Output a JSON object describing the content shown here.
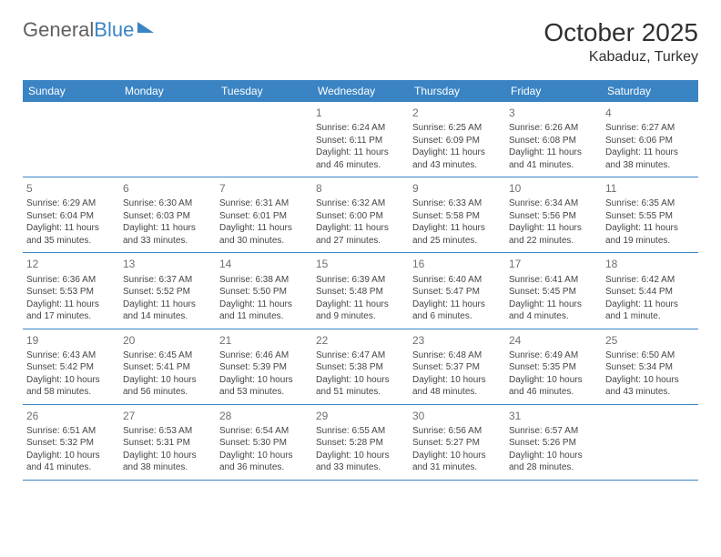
{
  "logo": {
    "text1": "General",
    "text2": "Blue"
  },
  "header": {
    "month": "October 2025",
    "location": "Kabaduz, Turkey"
  },
  "colors": {
    "header_bg": "#3a84c4",
    "header_text": "#ffffff",
    "border": "#3a84c4",
    "body_text": "#454545",
    "daynum": "#707070",
    "logo_gray": "#606060",
    "logo_blue": "#3a84c4"
  },
  "dow": [
    "Sunday",
    "Monday",
    "Tuesday",
    "Wednesday",
    "Thursday",
    "Friday",
    "Saturday"
  ],
  "weeks": [
    [
      {
        "n": "",
        "sr": "",
        "ss": "",
        "dl": ""
      },
      {
        "n": "",
        "sr": "",
        "ss": "",
        "dl": ""
      },
      {
        "n": "",
        "sr": "",
        "ss": "",
        "dl": ""
      },
      {
        "n": "1",
        "sr": "Sunrise: 6:24 AM",
        "ss": "Sunset: 6:11 PM",
        "dl": "Daylight: 11 hours and 46 minutes."
      },
      {
        "n": "2",
        "sr": "Sunrise: 6:25 AM",
        "ss": "Sunset: 6:09 PM",
        "dl": "Daylight: 11 hours and 43 minutes."
      },
      {
        "n": "3",
        "sr": "Sunrise: 6:26 AM",
        "ss": "Sunset: 6:08 PM",
        "dl": "Daylight: 11 hours and 41 minutes."
      },
      {
        "n": "4",
        "sr": "Sunrise: 6:27 AM",
        "ss": "Sunset: 6:06 PM",
        "dl": "Daylight: 11 hours and 38 minutes."
      }
    ],
    [
      {
        "n": "5",
        "sr": "Sunrise: 6:29 AM",
        "ss": "Sunset: 6:04 PM",
        "dl": "Daylight: 11 hours and 35 minutes."
      },
      {
        "n": "6",
        "sr": "Sunrise: 6:30 AM",
        "ss": "Sunset: 6:03 PM",
        "dl": "Daylight: 11 hours and 33 minutes."
      },
      {
        "n": "7",
        "sr": "Sunrise: 6:31 AM",
        "ss": "Sunset: 6:01 PM",
        "dl": "Daylight: 11 hours and 30 minutes."
      },
      {
        "n": "8",
        "sr": "Sunrise: 6:32 AM",
        "ss": "Sunset: 6:00 PM",
        "dl": "Daylight: 11 hours and 27 minutes."
      },
      {
        "n": "9",
        "sr": "Sunrise: 6:33 AM",
        "ss": "Sunset: 5:58 PM",
        "dl": "Daylight: 11 hours and 25 minutes."
      },
      {
        "n": "10",
        "sr": "Sunrise: 6:34 AM",
        "ss": "Sunset: 5:56 PM",
        "dl": "Daylight: 11 hours and 22 minutes."
      },
      {
        "n": "11",
        "sr": "Sunrise: 6:35 AM",
        "ss": "Sunset: 5:55 PM",
        "dl": "Daylight: 11 hours and 19 minutes."
      }
    ],
    [
      {
        "n": "12",
        "sr": "Sunrise: 6:36 AM",
        "ss": "Sunset: 5:53 PM",
        "dl": "Daylight: 11 hours and 17 minutes."
      },
      {
        "n": "13",
        "sr": "Sunrise: 6:37 AM",
        "ss": "Sunset: 5:52 PM",
        "dl": "Daylight: 11 hours and 14 minutes."
      },
      {
        "n": "14",
        "sr": "Sunrise: 6:38 AM",
        "ss": "Sunset: 5:50 PM",
        "dl": "Daylight: 11 hours and 11 minutes."
      },
      {
        "n": "15",
        "sr": "Sunrise: 6:39 AM",
        "ss": "Sunset: 5:48 PM",
        "dl": "Daylight: 11 hours and 9 minutes."
      },
      {
        "n": "16",
        "sr": "Sunrise: 6:40 AM",
        "ss": "Sunset: 5:47 PM",
        "dl": "Daylight: 11 hours and 6 minutes."
      },
      {
        "n": "17",
        "sr": "Sunrise: 6:41 AM",
        "ss": "Sunset: 5:45 PM",
        "dl": "Daylight: 11 hours and 4 minutes."
      },
      {
        "n": "18",
        "sr": "Sunrise: 6:42 AM",
        "ss": "Sunset: 5:44 PM",
        "dl": "Daylight: 11 hours and 1 minute."
      }
    ],
    [
      {
        "n": "19",
        "sr": "Sunrise: 6:43 AM",
        "ss": "Sunset: 5:42 PM",
        "dl": "Daylight: 10 hours and 58 minutes."
      },
      {
        "n": "20",
        "sr": "Sunrise: 6:45 AM",
        "ss": "Sunset: 5:41 PM",
        "dl": "Daylight: 10 hours and 56 minutes."
      },
      {
        "n": "21",
        "sr": "Sunrise: 6:46 AM",
        "ss": "Sunset: 5:39 PM",
        "dl": "Daylight: 10 hours and 53 minutes."
      },
      {
        "n": "22",
        "sr": "Sunrise: 6:47 AM",
        "ss": "Sunset: 5:38 PM",
        "dl": "Daylight: 10 hours and 51 minutes."
      },
      {
        "n": "23",
        "sr": "Sunrise: 6:48 AM",
        "ss": "Sunset: 5:37 PM",
        "dl": "Daylight: 10 hours and 48 minutes."
      },
      {
        "n": "24",
        "sr": "Sunrise: 6:49 AM",
        "ss": "Sunset: 5:35 PM",
        "dl": "Daylight: 10 hours and 46 minutes."
      },
      {
        "n": "25",
        "sr": "Sunrise: 6:50 AM",
        "ss": "Sunset: 5:34 PM",
        "dl": "Daylight: 10 hours and 43 minutes."
      }
    ],
    [
      {
        "n": "26",
        "sr": "Sunrise: 6:51 AM",
        "ss": "Sunset: 5:32 PM",
        "dl": "Daylight: 10 hours and 41 minutes."
      },
      {
        "n": "27",
        "sr": "Sunrise: 6:53 AM",
        "ss": "Sunset: 5:31 PM",
        "dl": "Daylight: 10 hours and 38 minutes."
      },
      {
        "n": "28",
        "sr": "Sunrise: 6:54 AM",
        "ss": "Sunset: 5:30 PM",
        "dl": "Daylight: 10 hours and 36 minutes."
      },
      {
        "n": "29",
        "sr": "Sunrise: 6:55 AM",
        "ss": "Sunset: 5:28 PM",
        "dl": "Daylight: 10 hours and 33 minutes."
      },
      {
        "n": "30",
        "sr": "Sunrise: 6:56 AM",
        "ss": "Sunset: 5:27 PM",
        "dl": "Daylight: 10 hours and 31 minutes."
      },
      {
        "n": "31",
        "sr": "Sunrise: 6:57 AM",
        "ss": "Sunset: 5:26 PM",
        "dl": "Daylight: 10 hours and 28 minutes."
      },
      {
        "n": "",
        "sr": "",
        "ss": "",
        "dl": ""
      }
    ]
  ]
}
